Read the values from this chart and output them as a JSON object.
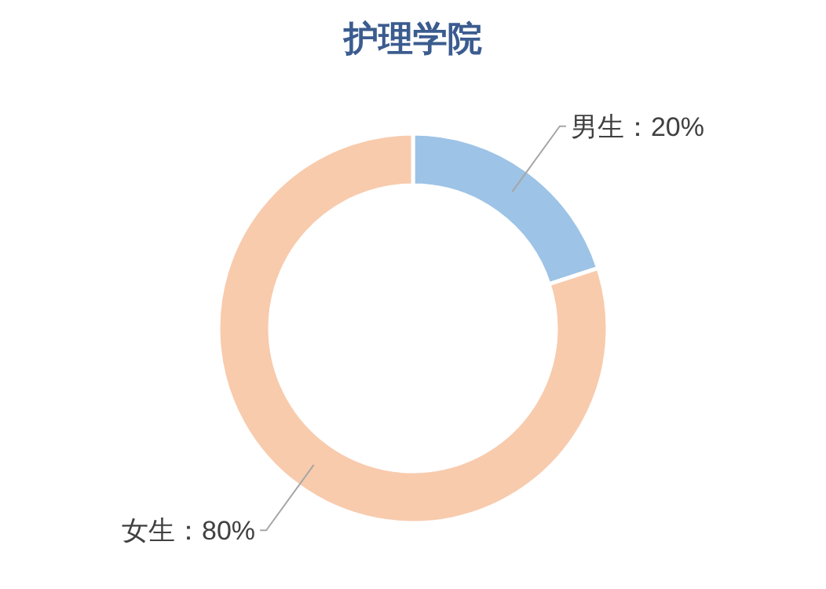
{
  "chart_data": {
    "type": "donut",
    "title": "护理学院",
    "categories": [
      "男生",
      "女生"
    ],
    "values": [
      20,
      80
    ],
    "colors": [
      "#9dc3e6",
      "#f8cbad"
    ],
    "value_labels": [
      "：20%",
      "：80%"
    ]
  }
}
